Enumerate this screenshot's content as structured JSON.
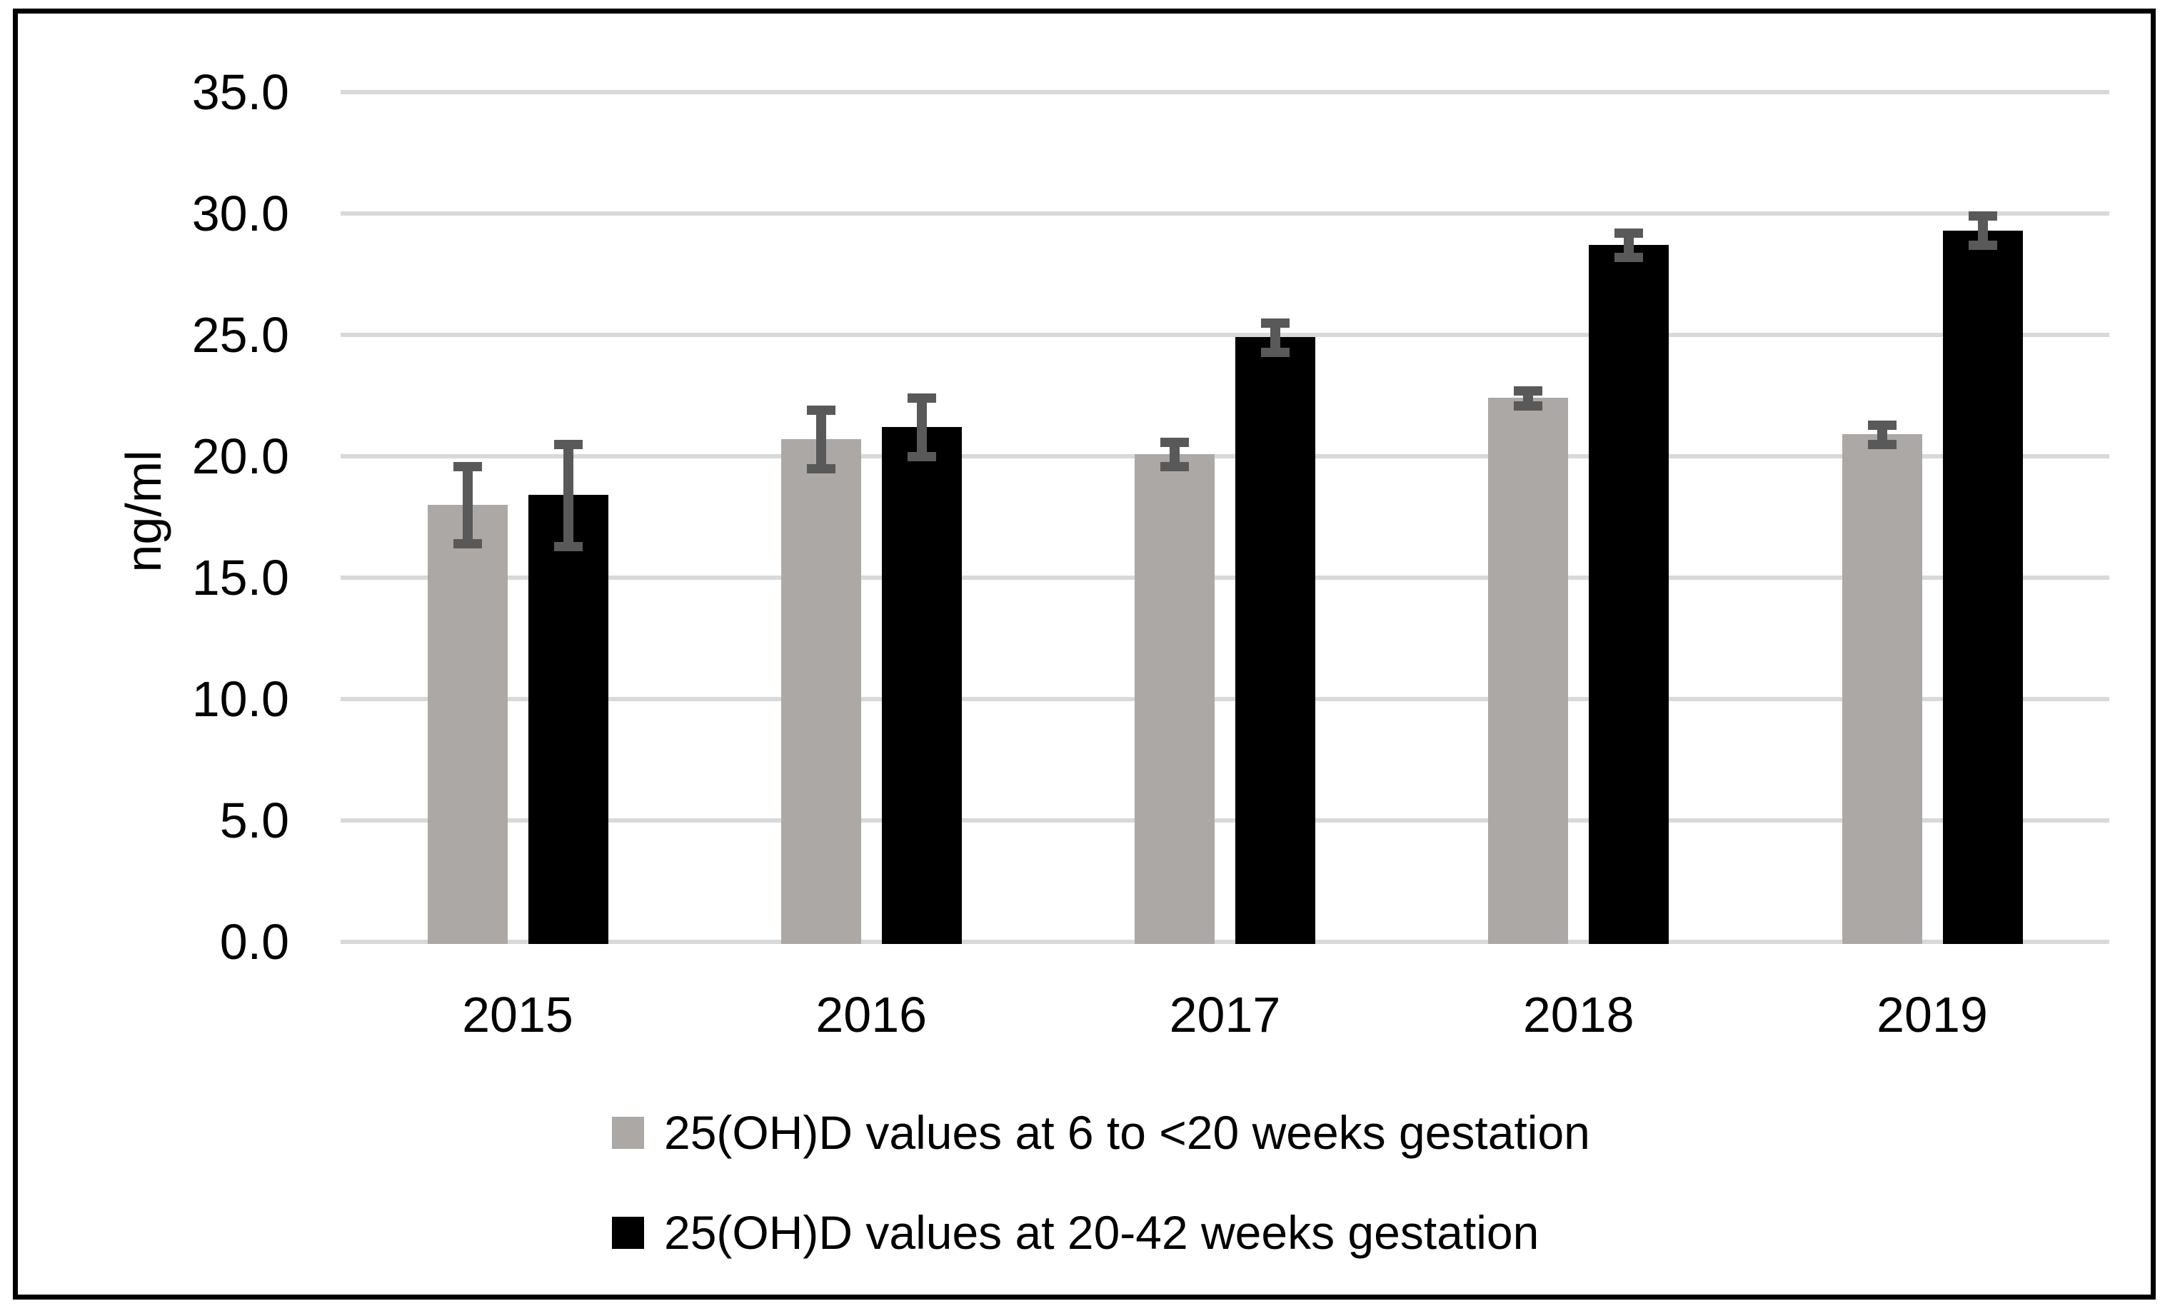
{
  "chart_data": {
    "type": "bar",
    "title": "",
    "ylabel": "ng/ml",
    "xlabel": "",
    "categories": [
      "2015",
      "2016",
      "2017",
      "2018",
      "2019"
    ],
    "series": [
      {
        "name": "25(OH)D values at 6 to <20 weeks gestation",
        "color": "#ACA8A5",
        "values": [
          18.0,
          20.7,
          20.1,
          22.4,
          20.9
        ],
        "error": [
          1.6,
          1.2,
          0.5,
          0.3,
          0.4
        ]
      },
      {
        "name": "25(OH)D values at 20-42 weeks gestation",
        "color": "#000000",
        "values": [
          18.4,
          21.2,
          24.9,
          28.7,
          29.3
        ],
        "error": [
          2.1,
          1.2,
          0.6,
          0.5,
          0.6
        ]
      }
    ],
    "ylim": [
      0,
      35
    ],
    "ytick_step": 5,
    "ytick_labels": [
      "0.0",
      "5.0",
      "10.0",
      "15.0",
      "20.0",
      "25.0",
      "30.0",
      "35.0"
    ],
    "grid": true,
    "legend_position": "bottom",
    "colors": {
      "error_bar": "#595959",
      "gridline": "#D9D9D9",
      "axis_line": "#D9D9D9",
      "text": "#000000",
      "frame_border": "#000000",
      "background": "#FFFFFF"
    }
  }
}
